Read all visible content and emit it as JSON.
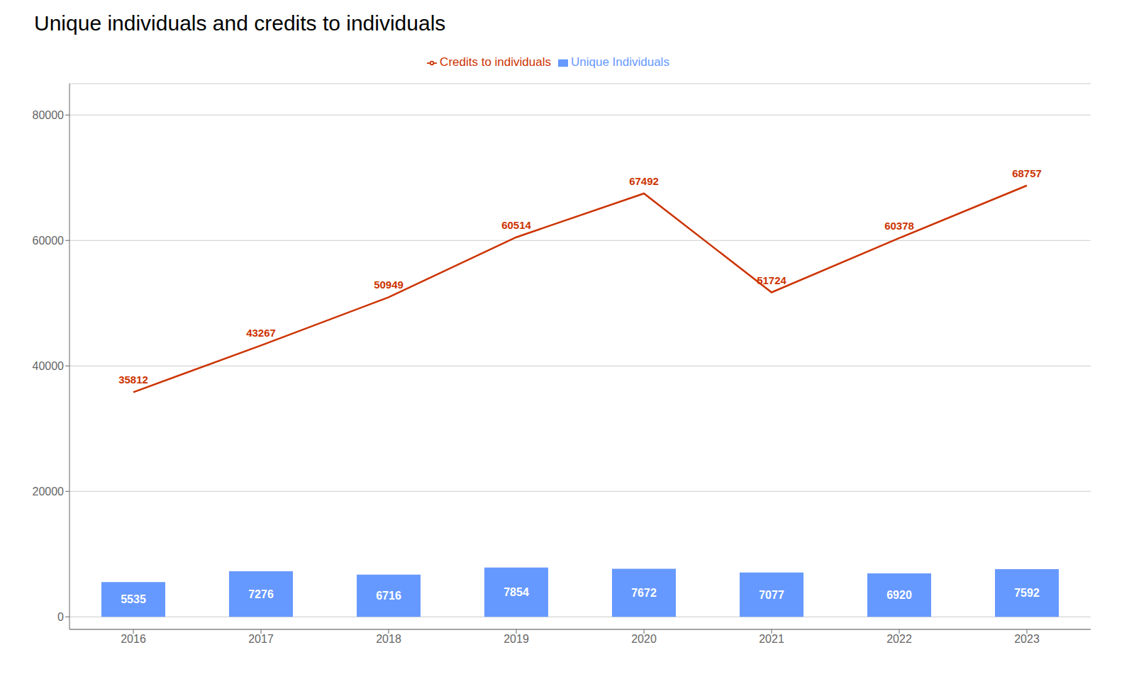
{
  "chart_data": {
    "type": "bar",
    "title": "Unique individuals and credits to individuals",
    "categories": [
      "2016",
      "2017",
      "2018",
      "2019",
      "2020",
      "2021",
      "2022",
      "2023"
    ],
    "series": [
      {
        "name": "Unique Individuals",
        "type": "bar",
        "color": "#6699FF",
        "values": [
          5535,
          7276,
          6716,
          7854,
          7672,
          7077,
          6920,
          7592
        ]
      },
      {
        "name": "Credits to individuals",
        "type": "line",
        "color": "#CC3300",
        "values": [
          35812,
          43267,
          50949,
          60514,
          67492,
          51724,
          60378,
          68757
        ]
      }
    ],
    "ylim": [
      -2000,
      85000
    ],
    "yticks": [
      0,
      20000,
      40000,
      60000,
      80000
    ],
    "grid": true,
    "legend": "top",
    "data_labels": true
  }
}
